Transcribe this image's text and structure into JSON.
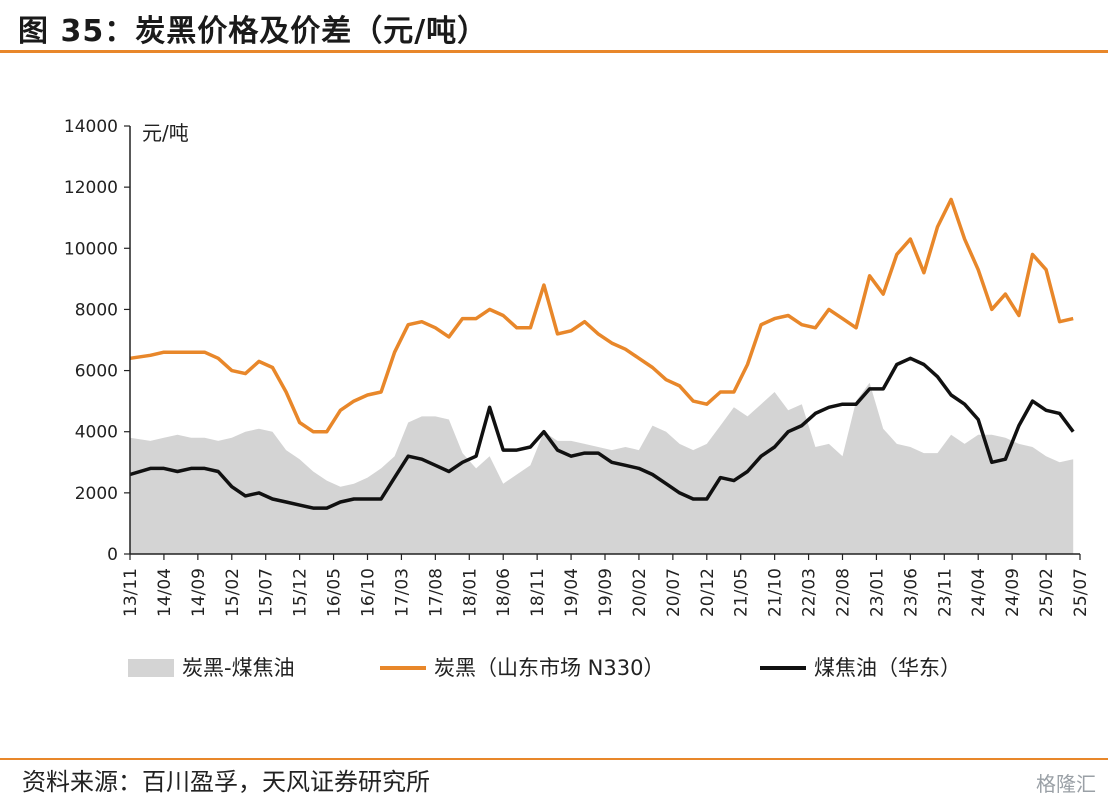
{
  "title": "图 35：炭黑价格及价差（元/吨）",
  "source": "资料来源：百川盈孚，天风证券研究所",
  "watermark": "格隆汇",
  "chart_data": {
    "type": "line",
    "unit_label": "元/吨",
    "ylim": [
      0,
      14000
    ],
    "yticks": [
      0,
      2000,
      4000,
      6000,
      8000,
      10000,
      12000,
      14000
    ],
    "xticks": [
      "13/11",
      "14/04",
      "14/09",
      "15/02",
      "15/07",
      "15/12",
      "16/05",
      "16/10",
      "17/03",
      "17/08",
      "18/01",
      "18/06",
      "18/11",
      "19/04",
      "19/09",
      "20/02",
      "20/07",
      "20/12",
      "21/05",
      "21/10",
      "22/03",
      "22/08",
      "23/01",
      "23/06",
      "23/11",
      "24/04",
      "24/09",
      "25/02",
      "25/07"
    ],
    "legend_position": "bottom",
    "grid": false,
    "x_months": [
      0,
      3,
      5,
      7,
      9,
      11,
      13,
      15,
      17,
      19,
      21,
      23,
      25,
      27,
      29,
      31,
      33,
      35,
      37,
      39,
      41,
      43,
      45,
      47,
      49,
      51,
      53,
      55,
      57,
      59,
      61,
      63,
      65,
      67,
      69,
      71,
      73,
      75,
      77,
      79,
      81,
      83,
      85,
      87,
      89,
      91,
      93,
      95,
      97,
      99,
      101,
      103,
      105,
      107,
      109,
      111,
      113,
      115,
      117,
      119,
      121,
      123,
      125,
      127,
      129,
      131,
      133,
      135,
      137,
      139
    ],
    "series": [
      {
        "name": "炭黑-煤焦油",
        "type": "area",
        "color": "#d4d4d4",
        "values": [
          3800,
          3700,
          3800,
          3900,
          3800,
          3800,
          3700,
          3800,
          4000,
          4100,
          4000,
          3400,
          3100,
          2700,
          2400,
          2200,
          2300,
          2500,
          2800,
          3200,
          4300,
          4500,
          4500,
          4400,
          3300,
          2800,
          3200,
          2300,
          2600,
          2900,
          4000,
          3700,
          3700,
          3600,
          3500,
          3400,
          3500,
          3400,
          4200,
          4000,
          3600,
          3400,
          3600,
          4200,
          4800,
          4500,
          4900,
          5300,
          4700,
          4900,
          3500,
          3600,
          3200,
          5000,
          5600,
          4100,
          3600,
          3500,
          3300,
          3300,
          3900,
          3600,
          3900,
          3900,
          3800,
          3600,
          3500,
          3200,
          3000,
          3100
        ]
      },
      {
        "name": "炭黑（山东市场 N330）",
        "type": "line",
        "color": "#e8872a",
        "values": [
          6400,
          6500,
          6600,
          6600,
          6600,
          6600,
          6400,
          6000,
          5900,
          6300,
          6100,
          5300,
          4300,
          4000,
          4000,
          4700,
          5000,
          5200,
          5300,
          6600,
          7500,
          7600,
          7400,
          7100,
          7700,
          7700,
          8000,
          7800,
          7400,
          7400,
          8800,
          7200,
          7300,
          7600,
          7200,
          6900,
          6700,
          6400,
          6100,
          5700,
          5500,
          5000,
          4900,
          5300,
          5300,
          6200,
          7500,
          7700,
          7800,
          7500,
          7400,
          8000,
          7700,
          7400,
          9100,
          8500,
          9800,
          10300,
          9200,
          10700,
          11600,
          10300,
          9300,
          8000,
          8500,
          7800,
          9800,
          9300,
          7600,
          7700
        ]
      },
      {
        "name": "煤焦油（华东）",
        "type": "line",
        "color": "#111111",
        "values": [
          2600,
          2800,
          2800,
          2700,
          2800,
          2800,
          2700,
          2200,
          1900,
          2000,
          1800,
          1700,
          1600,
          1500,
          1500,
          1700,
          1800,
          1800,
          1800,
          2500,
          3200,
          3100,
          2900,
          2700,
          3000,
          3200,
          4800,
          3400,
          3400,
          3500,
          4000,
          3400,
          3200,
          3300,
          3300,
          3000,
          2900,
          2800,
          2600,
          2300,
          2000,
          1800,
          1800,
          2500,
          2400,
          2700,
          3200,
          3500,
          4000,
          4200,
          4600,
          4800,
          4900,
          4900,
          5400,
          5400,
          6200,
          6400,
          6200,
          5800,
          5200,
          4900,
          4400,
          3000,
          3100,
          4200,
          5000,
          4700,
          4600,
          4000
        ]
      }
    ]
  }
}
